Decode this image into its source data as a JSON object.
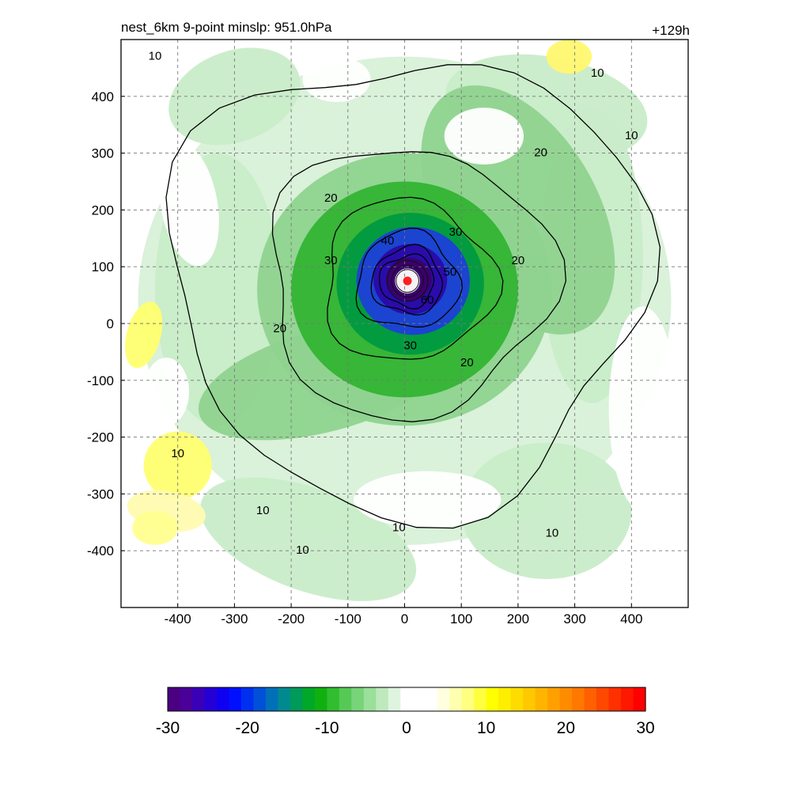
{
  "chart_data": {
    "type": "heatmap",
    "title_left": "nest_6km  9-point minslp: 951.0hPa",
    "title_right": "+129h",
    "x": {
      "range": [
        -500,
        500
      ],
      "ticks": [
        -400,
        -300,
        -200,
        -100,
        0,
        100,
        200,
        300,
        400
      ],
      "tick_labels": [
        "-400",
        "-300",
        "-200",
        "-100",
        "0",
        "100",
        "200",
        "300",
        "400"
      ]
    },
    "y": {
      "range": [
        -500,
        500
      ],
      "ticks": [
        400,
        300,
        200,
        100,
        0,
        -100,
        -200,
        -300,
        -400
      ],
      "tick_labels": [
        "400",
        "300",
        "200",
        "100",
        "0",
        "-100",
        "-200",
        "-300",
        "-400"
      ]
    },
    "grid": true,
    "contours": {
      "labels": [
        "10",
        "20",
        "30",
        "40",
        "50",
        "60"
      ],
      "levels": [
        10,
        20,
        30,
        40,
        50,
        60
      ]
    },
    "storm_center": {
      "x": 5,
      "y": 75,
      "color": "#ff2020"
    },
    "colorbar": {
      "min": -30,
      "max": 30,
      "ticks": [
        -30,
        -20,
        -10,
        0,
        10,
        20,
        30
      ],
      "tick_labels": [
        "-30",
        "-20",
        "-10",
        "0",
        "10",
        "20",
        "30"
      ],
      "colors": [
        "#4b0082",
        "#4a0099",
        "#3a00b8",
        "#2500d6",
        "#1000f0",
        "#0010ff",
        "#0030ef",
        "#0050d8",
        "#0070b8",
        "#008a90",
        "#009a5a",
        "#00a828",
        "#10b010",
        "#30bd30",
        "#55c955",
        "#78d478",
        "#9adf9a",
        "#bde9bd",
        "#dff4df",
        "#ffffff",
        "#ffffff",
        "#ffffff",
        "#ffffe0",
        "#ffffb0",
        "#ffff80",
        "#ffff40",
        "#ffff00",
        "#ffee00",
        "#ffdc00",
        "#ffc800",
        "#ffb400",
        "#ffa000",
        "#ff8c00",
        "#ff7800",
        "#ff6000",
        "#ff4800",
        "#ff3000",
        "#ff1800",
        "#ff0000"
      ]
    }
  }
}
